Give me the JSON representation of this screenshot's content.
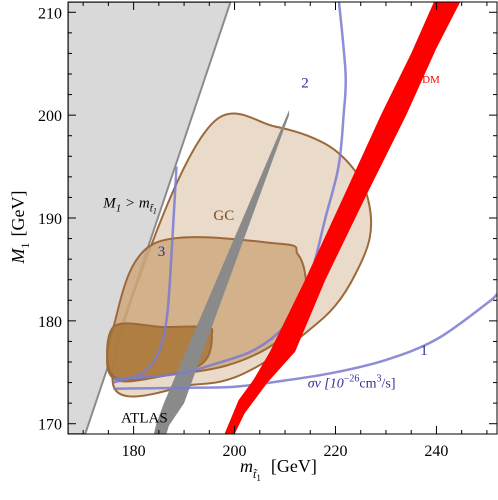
{
  "chart_data": {
    "type": "area",
    "xlabel": "m",
    "xlabel_sub": "t̃",
    "xlabel_subsub": "1",
    "xlabel_unit": "[GeV]",
    "ylabel": "M",
    "ylabel_sub": "1",
    "ylabel_unit": "[GeV]",
    "xlim": [
      167,
      252
    ],
    "ylim": [
      169,
      211
    ],
    "xticks": [
      180,
      200,
      220,
      240
    ],
    "yticks": [
      170,
      180,
      190,
      200,
      210
    ],
    "grid": false,
    "colors": {
      "excluded": "#d9d9d9",
      "gc_outer": "#e6d3c1",
      "gc_mid": "#cfa97f",
      "gc_inner": "#a87636",
      "gc_border": "#9c6a3a",
      "atlas": "#8a8a8a",
      "omega": "#ff0000",
      "sigma": "#7a7ad0"
    },
    "regions": [
      {
        "name": "excluded",
        "label_main": "M",
        "label_sub": "1",
        "label_rel": " > m",
        "label_sub2": "t̃",
        "label_sub3": "1",
        "polygon": [
          [
            167,
            169
          ],
          [
            170.4,
            169
          ],
          [
            199.2,
            211
          ],
          [
            167,
            211
          ]
        ]
      },
      {
        "name": "GC",
        "label": "GC",
        "outer": [
          [
            176,
            173.7
          ],
          [
            192,
            173.8
          ],
          [
            200,
            174.5
          ],
          [
            208,
            176.6
          ],
          [
            215,
            179.2
          ],
          [
            220,
            181.5
          ],
          [
            224,
            184.6
          ],
          [
            226.8,
            188.1
          ],
          [
            226.6,
            191.5
          ],
          [
            224,
            194.5
          ],
          [
            218,
            197.2
          ],
          [
            208,
            198.9
          ],
          [
            196,
            199.4
          ],
          [
            184,
            188
          ]
        ],
        "mid": [
          [
            176,
            174.4
          ],
          [
            188,
            174.8
          ],
          [
            198,
            175.6
          ],
          [
            206,
            177.2
          ],
          [
            212,
            179.5
          ],
          [
            214,
            181.5
          ],
          [
            214,
            184.5
          ],
          [
            212.5,
            186.5
          ],
          [
            209,
            187.5
          ],
          [
            184,
            187.5
          ],
          [
            176,
            179.4
          ]
        ],
        "inner": [
          [
            176,
            174.6
          ],
          [
            186,
            174.7
          ],
          [
            192,
            175.4
          ],
          [
            194.8,
            176.6
          ],
          [
            195.5,
            178.6
          ],
          [
            194.5,
            179.4
          ],
          [
            186,
            179.4
          ],
          [
            176,
            179.4
          ]
        ]
      },
      {
        "name": "ATLAS",
        "label": "ATLAS",
        "polygon": [
          [
            186.5,
            169
          ],
          [
            184,
            169
          ],
          [
            184.5,
            170
          ],
          [
            186,
            172
          ],
          [
            210.8,
            200.5
          ],
          [
            210.8,
            200
          ],
          [
            190,
            172
          ],
          [
            187,
            169.8
          ]
        ]
      },
      {
        "name": "omega_dm",
        "label": "Ω",
        "label_sub": "DM",
        "left": [
          [
            198,
            169
          ],
          [
            200.8,
            172.3
          ],
          [
            203.8,
            174.3
          ],
          [
            207,
            177
          ],
          [
            214,
            184
          ],
          [
            222,
            192.5
          ],
          [
            229,
            200
          ],
          [
            235,
            206
          ],
          [
            239.5,
            211
          ]
        ],
        "right": [
          [
            244.7,
            211
          ],
          [
            240,
            206.5
          ],
          [
            234,
            200
          ],
          [
            226.4,
            192.5
          ],
          [
            218,
            184
          ],
          [
            212,
            177
          ],
          [
            206.5,
            174
          ],
          [
            202,
            171
          ],
          [
            200,
            169
          ]
        ]
      }
    ],
    "series": [
      {
        "label": "1",
        "points": [
          [
            176,
            173.4
          ],
          [
            190,
            173.5
          ],
          [
            200,
            173.6
          ],
          [
            210,
            174.2
          ],
          [
            220,
            175
          ],
          [
            230,
            176.2
          ],
          [
            240,
            178.2
          ],
          [
            250,
            181.7
          ],
          [
            252,
            182.6
          ]
        ]
      },
      {
        "label": "2",
        "points": [
          [
            176,
            174.3
          ],
          [
            188,
            174.8
          ],
          [
            196,
            175.8
          ],
          [
            204,
            177.2
          ],
          [
            210,
            179.5
          ],
          [
            214,
            182.7
          ],
          [
            216,
            186
          ],
          [
            218,
            190
          ],
          [
            220.6,
            195
          ],
          [
            221.6,
            200
          ],
          [
            222,
            204
          ],
          [
            220.7,
            211
          ]
        ]
      },
      {
        "label": "3",
        "points": [
          [
            176,
            174
          ],
          [
            182,
            175
          ],
          [
            185,
            177
          ],
          [
            186.5,
            180
          ],
          [
            187.2,
            184
          ],
          [
            187.8,
            189
          ],
          [
            188.5,
            195
          ]
        ]
      }
    ],
    "sigma_label": "σv [10",
    "sigma_exp": "−26",
    "sigma_mid": "cm",
    "sigma_exp2": "3",
    "sigma_end": "/s]"
  }
}
